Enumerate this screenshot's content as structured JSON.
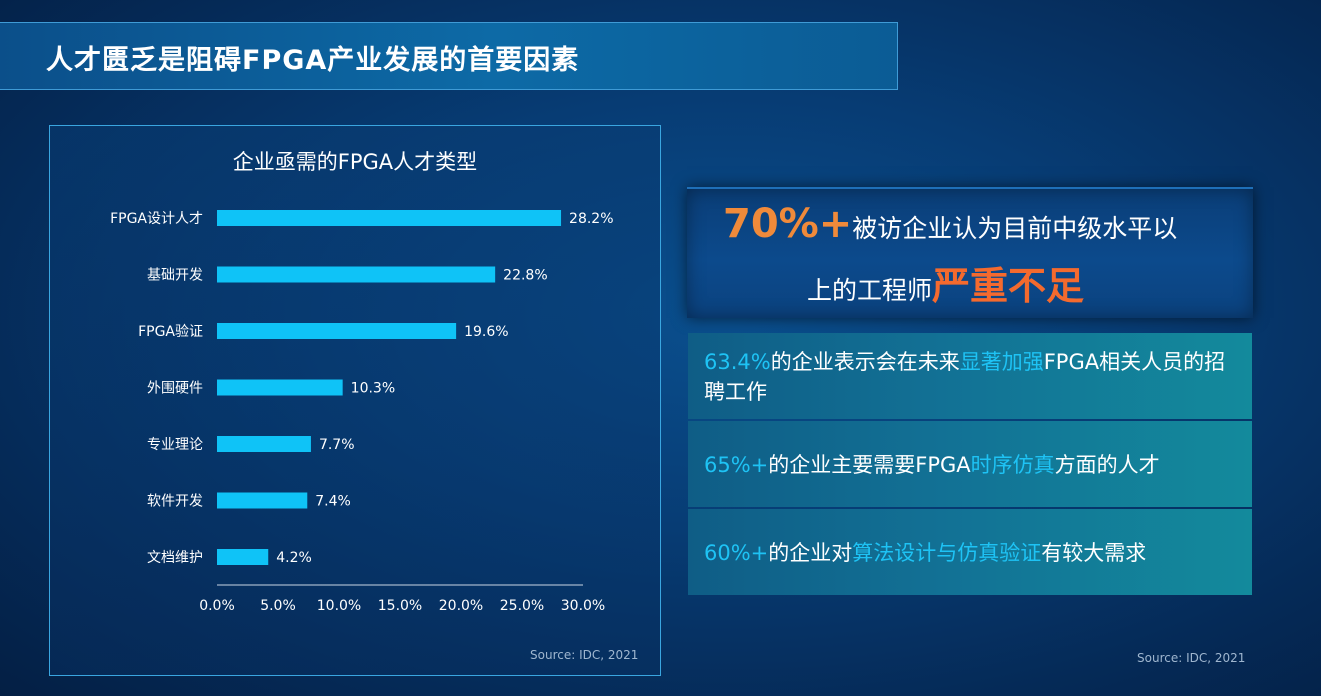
{
  "header": {
    "title": "人才匮乏是阻碍FPGA产业发展的首要因素"
  },
  "chart_data": {
    "type": "bar",
    "orientation": "horizontal",
    "title": "企业亟需的FPGA人才类型",
    "categories": [
      "FPGA设计人才",
      "基础开发",
      "FPGA验证",
      "外围硬件",
      "专业理论",
      "软件开发",
      "文档维护"
    ],
    "values": [
      28.2,
      22.8,
      19.6,
      10.3,
      7.7,
      7.4,
      4.2
    ],
    "value_labels": [
      "28.2%",
      "22.8%",
      "19.6%",
      "10.3%",
      "7.7%",
      "7.4%",
      "4.2%"
    ],
    "xticks": [
      "0.0%",
      "5.0%",
      "10.0%",
      "15.0%",
      "20.0%",
      "25.0%",
      "30.0%"
    ],
    "xlim": [
      0,
      30
    ],
    "bar_color": "#0fc3f7",
    "grid": false,
    "source": "Source: IDC, 2021"
  },
  "hero": {
    "big": "70%+",
    "text1": "被访企业认为目前中级水平以",
    "text2": "上的工程师",
    "emph": "严重不足"
  },
  "stats": [
    {
      "a": "63.4%",
      "b": "的企业表示会在未来",
      "c": "显著加强",
      "d": "FPGA相关人员的招聘工作"
    },
    {
      "a": "65%+",
      "b": "的企业主要需要FPGA",
      "c": "时序仿真",
      "d": "方面的人才"
    },
    {
      "a": "60%+",
      "b": "的企业对",
      "c": "算法设计与仿真验证",
      "d": "有较大需求"
    }
  ],
  "source_right": "Source: IDC, 2021",
  "colors": {
    "accent_orange": "#f08a3a",
    "accent_cyan": "#1ec3f5"
  }
}
